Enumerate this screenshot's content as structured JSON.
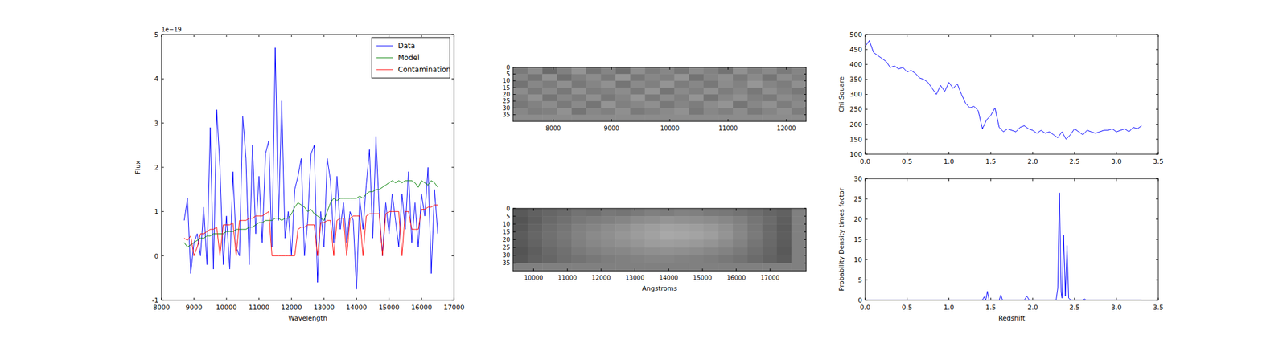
{
  "chart_data": [
    {
      "type": "line",
      "xlabel": "Wavelength",
      "ylabel": "Flux",
      "annotations": [
        "1e−19"
      ],
      "xlim": [
        8000,
        17000
      ],
      "xticks": [
        8000,
        9000,
        10000,
        11000,
        12000,
        13000,
        14000,
        15000,
        16000,
        17000
      ],
      "ylim": [
        -1,
        5
      ],
      "yticks": [
        -1,
        0,
        1,
        2,
        3,
        4,
        5
      ],
      "legend": "upper right",
      "x": [
        8700,
        8800,
        8900,
        9000,
        9100,
        9200,
        9300,
        9400,
        9500,
        9600,
        9700,
        9800,
        9900,
        10000,
        10100,
        10200,
        10300,
        10400,
        10500,
        10600,
        10700,
        10800,
        10900,
        11000,
        11100,
        11200,
        11300,
        11400,
        11500,
        11600,
        11700,
        11800,
        11900,
        12000,
        12100,
        12200,
        12300,
        12400,
        12500,
        12600,
        12700,
        12800,
        12900,
        13000,
        13100,
        13200,
        13300,
        13400,
        13500,
        13600,
        13700,
        13800,
        13900,
        14000,
        14100,
        14200,
        14300,
        14400,
        14500,
        14600,
        14700,
        14800,
        14900,
        15000,
        15100,
        15200,
        15300,
        15400,
        15500,
        15600,
        15700,
        15800,
        15900,
        16000,
        16100,
        16200,
        16300,
        16400,
        16500
      ],
      "series": [
        {
          "name": "Data",
          "color": "#0000ff",
          "values": [
            0.8,
            1.3,
            -0.4,
            0.3,
            0.5,
            0.0,
            1.1,
            -0.2,
            2.9,
            -0.3,
            3.3,
            2.0,
            -0.2,
            0.9,
            -0.3,
            1.9,
            0.2,
            0.0,
            3.15,
            2.2,
            -0.2,
            2.5,
            0.5,
            1.8,
            0.3,
            2.3,
            2.6,
            0.2,
            4.7,
            0.8,
            3.5,
            0.4,
            1.0,
            0.0,
            1.5,
            1.8,
            2.2,
            0.0,
            0.8,
            2.3,
            2.5,
            -0.6,
            1.0,
            0.2,
            2.2,
            1.7,
            0.3,
            1.8,
            0.6,
            1.2,
            0.3,
            1.0,
            0.8,
            -0.75,
            1.3,
            0.6,
            1.6,
            2.4,
            0.4,
            2.7,
            1.0,
            0.0,
            1.2,
            0.5,
            1.4,
            0.8,
            0.2,
            1.4,
            0.6,
            1.9,
            0.3,
            1.2,
            0.2,
            1.4,
            0.9,
            2.0,
            -0.4,
            1.5,
            0.5
          ]
        },
        {
          "name": "Model",
          "color": "#008000",
          "values": [
            0.3,
            0.2,
            0.25,
            0.3,
            0.35,
            0.4,
            0.4,
            0.45,
            0.45,
            0.5,
            0.5,
            0.5,
            0.5,
            0.55,
            0.55,
            0.55,
            0.6,
            0.6,
            0.6,
            0.6,
            0.65,
            0.65,
            0.7,
            0.75,
            0.75,
            0.8,
            0.8,
            0.8,
            0.85,
            0.85,
            0.8,
            0.85,
            0.85,
            0.95,
            1.1,
            1.2,
            1.15,
            1.1,
            1.0,
            1.05,
            0.95,
            0.9,
            0.85,
            0.8,
            1.0,
            1.2,
            1.3,
            1.25,
            1.3,
            1.3,
            1.3,
            1.3,
            1.3,
            1.3,
            1.35,
            1.3,
            1.4,
            1.45,
            1.45,
            1.5,
            1.5,
            1.55,
            1.6,
            1.65,
            1.7,
            1.65,
            1.7,
            1.65,
            1.7,
            1.7,
            1.7,
            1.65,
            1.55,
            1.7,
            1.65,
            1.6,
            1.7,
            1.65,
            1.55
          ]
        },
        {
          "name": "Contamination",
          "color": "#ff0000",
          "values": [
            0.4,
            0.35,
            0.45,
            0.0,
            0.2,
            0.5,
            0.5,
            0.55,
            0.6,
            0.6,
            0.65,
            0.0,
            0.7,
            0.7,
            0.7,
            0.75,
            0.0,
            0.8,
            0.8,
            0.8,
            0.85,
            0.85,
            0.9,
            0.9,
            0.9,
            0.95,
            1.0,
            0.0,
            0.0,
            0.0,
            0.0,
            0.0,
            0.0,
            0.0,
            0.0,
            0.6,
            0.65,
            0.65,
            0.7,
            0.7,
            0.7,
            0.0,
            0.75,
            0.75,
            0.8,
            0.8,
            0.0,
            0.8,
            0.85,
            0.85,
            0.0,
            0.85,
            0.9,
            0.9,
            0.9,
            0.0,
            0.9,
            0.95,
            0.95,
            0.95,
            0.95,
            0.0,
            0.95,
            1.0,
            1.0,
            1.0,
            1.0,
            0.0,
            1.0,
            1.0,
            0.6,
            0.6,
            0.6,
            1.05,
            1.05,
            1.1,
            1.1,
            1.15,
            1.15
          ]
        }
      ]
    },
    {
      "type": "heatmap",
      "xlim": [
        7310,
        12340
      ],
      "xticks": [
        8000,
        9000,
        10000,
        11000,
        12000
      ],
      "ylim": [
        40,
        0
      ],
      "yticks": [
        0,
        5,
        10,
        15,
        20,
        25,
        30,
        35
      ],
      "cells": [
        [
          0.48,
          0.55,
          0.42,
          0.5,
          0.58,
          0.46,
          0.52,
          0.44,
          0.56,
          0.49,
          0.53,
          0.47,
          0.55,
          0.51,
          0.45,
          0.57,
          0.5,
          0.54,
          0.48,
          0.52
        ],
        [
          0.52,
          0.46,
          0.57,
          0.44,
          0.5,
          0.55,
          0.48,
          0.59,
          0.47,
          0.53,
          0.5,
          0.58,
          0.45,
          0.52,
          0.56,
          0.48,
          0.54,
          0.46,
          0.55,
          0.5
        ],
        [
          0.45,
          0.53,
          0.49,
          0.56,
          0.47,
          0.52,
          0.57,
          0.46,
          0.54,
          0.5,
          0.58,
          0.49,
          0.53,
          0.47,
          0.55,
          0.51,
          0.59,
          0.52,
          0.49,
          0.56
        ],
        [
          0.55,
          0.48,
          0.54,
          0.47,
          0.57,
          0.49,
          0.51,
          0.55,
          0.48,
          0.58,
          0.46,
          0.54,
          0.5,
          0.57,
          0.49,
          0.53,
          0.47,
          0.56,
          0.51,
          0.47
        ],
        [
          0.5,
          0.57,
          0.46,
          0.53,
          0.49,
          0.56,
          0.47,
          0.52,
          0.59,
          0.48,
          0.55,
          0.5,
          0.58,
          0.46,
          0.53,
          0.57,
          0.5,
          0.48,
          0.55,
          0.52
        ],
        [
          0.47,
          0.51,
          0.55,
          0.48,
          0.54,
          0.46,
          0.58,
          0.5,
          0.53,
          0.56,
          0.47,
          0.52,
          0.49,
          0.55,
          0.58,
          0.46,
          0.53,
          0.57,
          0.49,
          0.54
        ],
        [
          0.53,
          0.49,
          0.5,
          0.57,
          0.46,
          0.53,
          0.5,
          0.56,
          0.48,
          0.51,
          0.54,
          0.57,
          0.47,
          0.53,
          0.5,
          0.55,
          0.48,
          0.52,
          0.56,
          0.49
        ],
        [
          0.55,
          0.55,
          0.55,
          0.55,
          0.55,
          0.55,
          0.55,
          0.55,
          0.55,
          0.55,
          0.55,
          0.55,
          0.55,
          0.55,
          0.55,
          0.55,
          0.55,
          0.55,
          0.55,
          0.55
        ]
      ]
    },
    {
      "type": "heatmap",
      "xlabel": "Angstroms",
      "xlim": [
        9390,
        18070
      ],
      "xticks": [
        10000,
        11000,
        12000,
        13000,
        14000,
        15000,
        16000,
        17000
      ],
      "ylim": [
        40,
        0
      ],
      "yticks": [
        0,
        5,
        10,
        15,
        20,
        25,
        30,
        35
      ],
      "cells": [
        [
          0.35,
          0.38,
          0.4,
          0.42,
          0.45,
          0.44,
          0.47,
          0.46,
          0.48,
          0.5,
          0.49,
          0.51,
          0.5,
          0.48,
          0.47,
          0.45,
          0.43,
          0.4,
          0.38,
          0.5
        ],
        [
          0.33,
          0.37,
          0.41,
          0.44,
          0.47,
          0.49,
          0.5,
          0.52,
          0.55,
          0.56,
          0.58,
          0.57,
          0.56,
          0.55,
          0.53,
          0.5,
          0.46,
          0.42,
          0.37,
          0.5
        ],
        [
          0.34,
          0.39,
          0.43,
          0.46,
          0.5,
          0.52,
          0.55,
          0.57,
          0.6,
          0.62,
          0.64,
          0.63,
          0.62,
          0.6,
          0.57,
          0.52,
          0.47,
          0.41,
          0.36,
          0.5
        ],
        [
          0.36,
          0.4,
          0.44,
          0.47,
          0.51,
          0.54,
          0.56,
          0.59,
          0.61,
          0.63,
          0.66,
          0.65,
          0.64,
          0.62,
          0.58,
          0.53,
          0.48,
          0.42,
          0.37,
          0.5
        ],
        [
          0.35,
          0.39,
          0.43,
          0.46,
          0.5,
          0.53,
          0.55,
          0.57,
          0.59,
          0.61,
          0.62,
          0.61,
          0.6,
          0.58,
          0.55,
          0.51,
          0.46,
          0.41,
          0.36,
          0.5
        ],
        [
          0.33,
          0.37,
          0.41,
          0.44,
          0.48,
          0.5,
          0.52,
          0.53,
          0.55,
          0.56,
          0.57,
          0.56,
          0.55,
          0.53,
          0.51,
          0.48,
          0.44,
          0.4,
          0.35,
          0.5
        ],
        [
          0.34,
          0.38,
          0.4,
          0.43,
          0.45,
          0.47,
          0.49,
          0.5,
          0.51,
          0.52,
          0.52,
          0.51,
          0.5,
          0.49,
          0.47,
          0.45,
          0.42,
          0.39,
          0.36,
          0.5
        ],
        [
          0.5,
          0.5,
          0.5,
          0.5,
          0.5,
          0.5,
          0.5,
          0.5,
          0.5,
          0.5,
          0.5,
          0.5,
          0.5,
          0.5,
          0.5,
          0.5,
          0.5,
          0.5,
          0.5,
          0.5
        ]
      ]
    },
    {
      "type": "line",
      "ylabel": "Chi Square",
      "xlim": [
        0,
        3.5
      ],
      "xticks": [
        {
          "value": 0,
          "label": "0.0"
        },
        0.5,
        {
          "value": 1,
          "label": "1.0"
        },
        1.5,
        {
          "value": 2,
          "label": "2.0"
        },
        2.5,
        {
          "value": 3,
          "label": "3.0"
        },
        3.5
      ],
      "ylim": [
        100,
        500
      ],
      "yticks": [
        100,
        150,
        200,
        250,
        300,
        350,
        400,
        450,
        500
      ],
      "x": [
        0,
        0.05,
        0.1,
        0.15,
        0.2,
        0.25,
        0.3,
        0.35,
        0.4,
        0.45,
        0.5,
        0.55,
        0.6,
        0.65,
        0.7,
        0.75,
        0.8,
        0.85,
        0.9,
        0.95,
        1.0,
        1.05,
        1.1,
        1.15,
        1.2,
        1.25,
        1.3,
        1.35,
        1.4,
        1.45,
        1.5,
        1.55,
        1.6,
        1.65,
        1.7,
        1.75,
        1.8,
        1.85,
        1.9,
        1.95,
        2.0,
        2.05,
        2.1,
        2.15,
        2.2,
        2.25,
        2.3,
        2.35,
        2.4,
        2.45,
        2.5,
        2.55,
        2.6,
        2.65,
        2.7,
        2.75,
        2.8,
        2.85,
        2.9,
        2.95,
        3.0,
        3.05,
        3.1,
        3.15,
        3.2,
        3.25,
        3.3
      ],
      "series": [
        {
          "color": "#0000ff",
          "values": [
            460,
            480,
            440,
            430,
            420,
            410,
            390,
            395,
            385,
            390,
            375,
            380,
            370,
            355,
            350,
            340,
            320,
            300,
            330,
            310,
            340,
            320,
            335,
            300,
            270,
            255,
            260,
            245,
            185,
            215,
            230,
            255,
            190,
            175,
            185,
            180,
            175,
            190,
            195,
            185,
            180,
            170,
            180,
            170,
            175,
            165,
            155,
            175,
            150,
            165,
            185,
            175,
            165,
            180,
            175,
            170,
            175,
            180,
            180,
            185,
            175,
            180,
            185,
            175,
            190,
            185,
            195
          ]
        }
      ]
    },
    {
      "type": "line",
      "xlabel": "Redshift",
      "ylabel": "Probability Density times factor",
      "xlim": [
        0,
        3.5
      ],
      "xticks": [
        {
          "value": 0,
          "label": "0.0"
        },
        0.5,
        {
          "value": 1,
          "label": "1.0"
        },
        1.5,
        {
          "value": 2,
          "label": "2.0"
        },
        2.5,
        {
          "value": 3,
          "label": "3.0"
        },
        3.5
      ],
      "ylim": [
        0,
        30
      ],
      "yticks": [
        0,
        5,
        10,
        15,
        20,
        25,
        30
      ],
      "x": [
        0,
        1.0,
        1.4,
        1.42,
        1.44,
        1.46,
        1.48,
        1.5,
        1.6,
        1.62,
        1.64,
        1.9,
        1.93,
        1.96,
        2.25,
        2.28,
        2.3,
        2.32,
        2.34,
        2.35,
        2.37,
        2.39,
        2.41,
        2.43,
        2.46,
        2.6,
        2.62,
        2.64,
        3.3
      ],
      "series": [
        {
          "color": "#0000ff",
          "values": [
            0,
            0,
            0,
            0.8,
            0,
            2.2,
            0,
            0,
            0,
            1.3,
            0,
            0,
            1.0,
            0,
            0,
            0,
            3,
            26.5,
            2,
            0.5,
            16,
            1,
            13.5,
            0.5,
            0,
            0,
            0.3,
            0,
            0
          ]
        }
      ]
    }
  ]
}
